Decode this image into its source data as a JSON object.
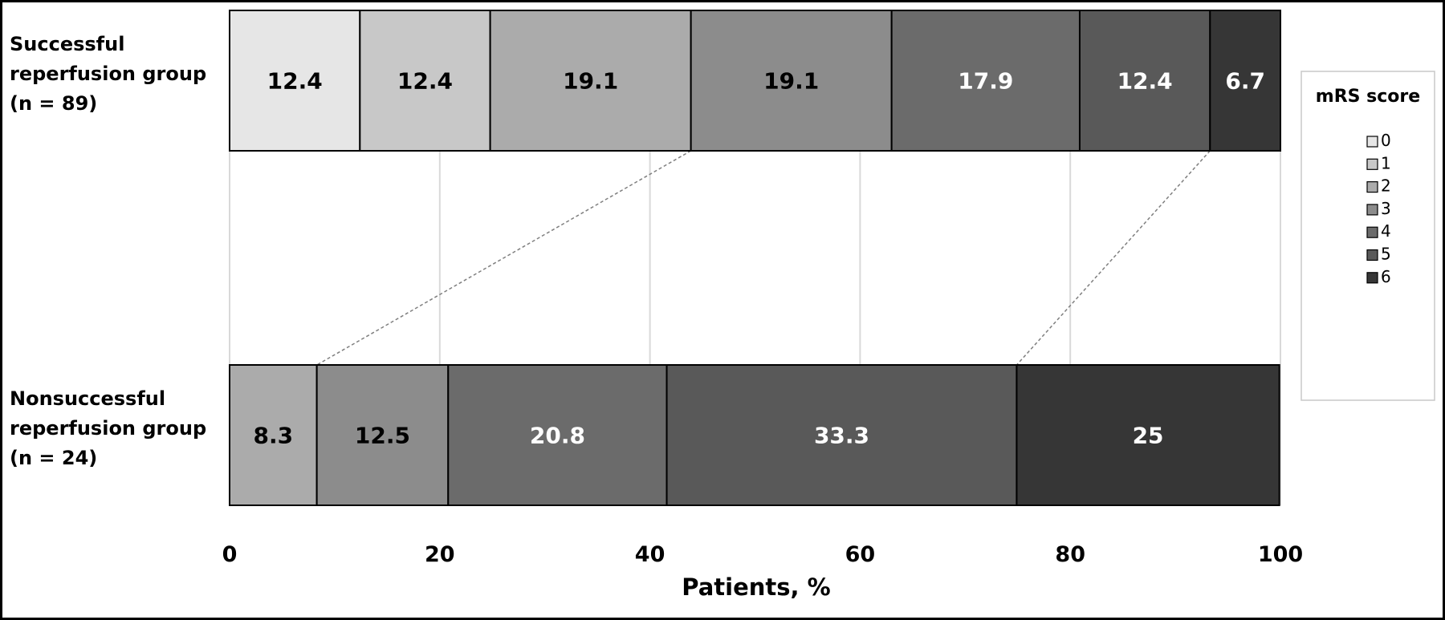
{
  "chart_data": {
    "type": "bar",
    "orientation": "horizontal",
    "stacked": true,
    "categories": [
      [
        "Successful",
        "reperfusion group",
        "(n = 89)"
      ],
      [
        "Nonsuccessful",
        "reperfusion group",
        "(n = 24)"
      ]
    ],
    "xlabel": "Patients, %",
    "xlim": [
      0,
      100
    ],
    "xticks": [
      "0",
      "20",
      "40",
      "60",
      "80",
      "100"
    ],
    "xtick_values": [
      0,
      20,
      40,
      60,
      80,
      100
    ],
    "grid": "vertical",
    "legend": {
      "title": "mRS score",
      "placement": "right",
      "items": [
        "0",
        "1",
        "2",
        "3",
        "4",
        "5",
        "6"
      ]
    },
    "series": [
      {
        "name": "0",
        "color": "#e6e6e6",
        "label_color": "#000000",
        "values": [
          12.4,
          0
        ]
      },
      {
        "name": "1",
        "color": "#c8c8c8",
        "label_color": "#000000",
        "values": [
          12.4,
          0
        ]
      },
      {
        "name": "2",
        "color": "#ababab",
        "label_color": "#000000",
        "values": [
          19.1,
          8.3
        ]
      },
      {
        "name": "3",
        "color": "#8c8c8c",
        "label_color": "#000000",
        "values": [
          19.1,
          12.5
        ]
      },
      {
        "name": "4",
        "color": "#6b6b6b",
        "label_color": "#ffffff",
        "values": [
          17.9,
          20.8
        ]
      },
      {
        "name": "5",
        "color": "#595959",
        "label_color": "#ffffff",
        "values": [
          12.4,
          33.3
        ]
      },
      {
        "name": "6",
        "color": "#363636",
        "label_color": "#ffffff",
        "values": [
          6.7,
          25
        ]
      }
    ],
    "data_labels": [
      [
        "12.4",
        "12.4",
        "19.1",
        "19.1",
        "17.9",
        "12.4",
        "6.7"
      ],
      [
        "",
        "",
        "8.3",
        "12.5",
        "20.8",
        "33.3",
        "25"
      ]
    ],
    "connectors": [
      {
        "from": {
          "row": 0,
          "x": 43.9
        },
        "to": {
          "row": 1,
          "x": 8.3
        }
      },
      {
        "from": {
          "row": 0,
          "x": 93.3
        },
        "to": {
          "row": 1,
          "x": 74.9
        }
      }
    ]
  }
}
